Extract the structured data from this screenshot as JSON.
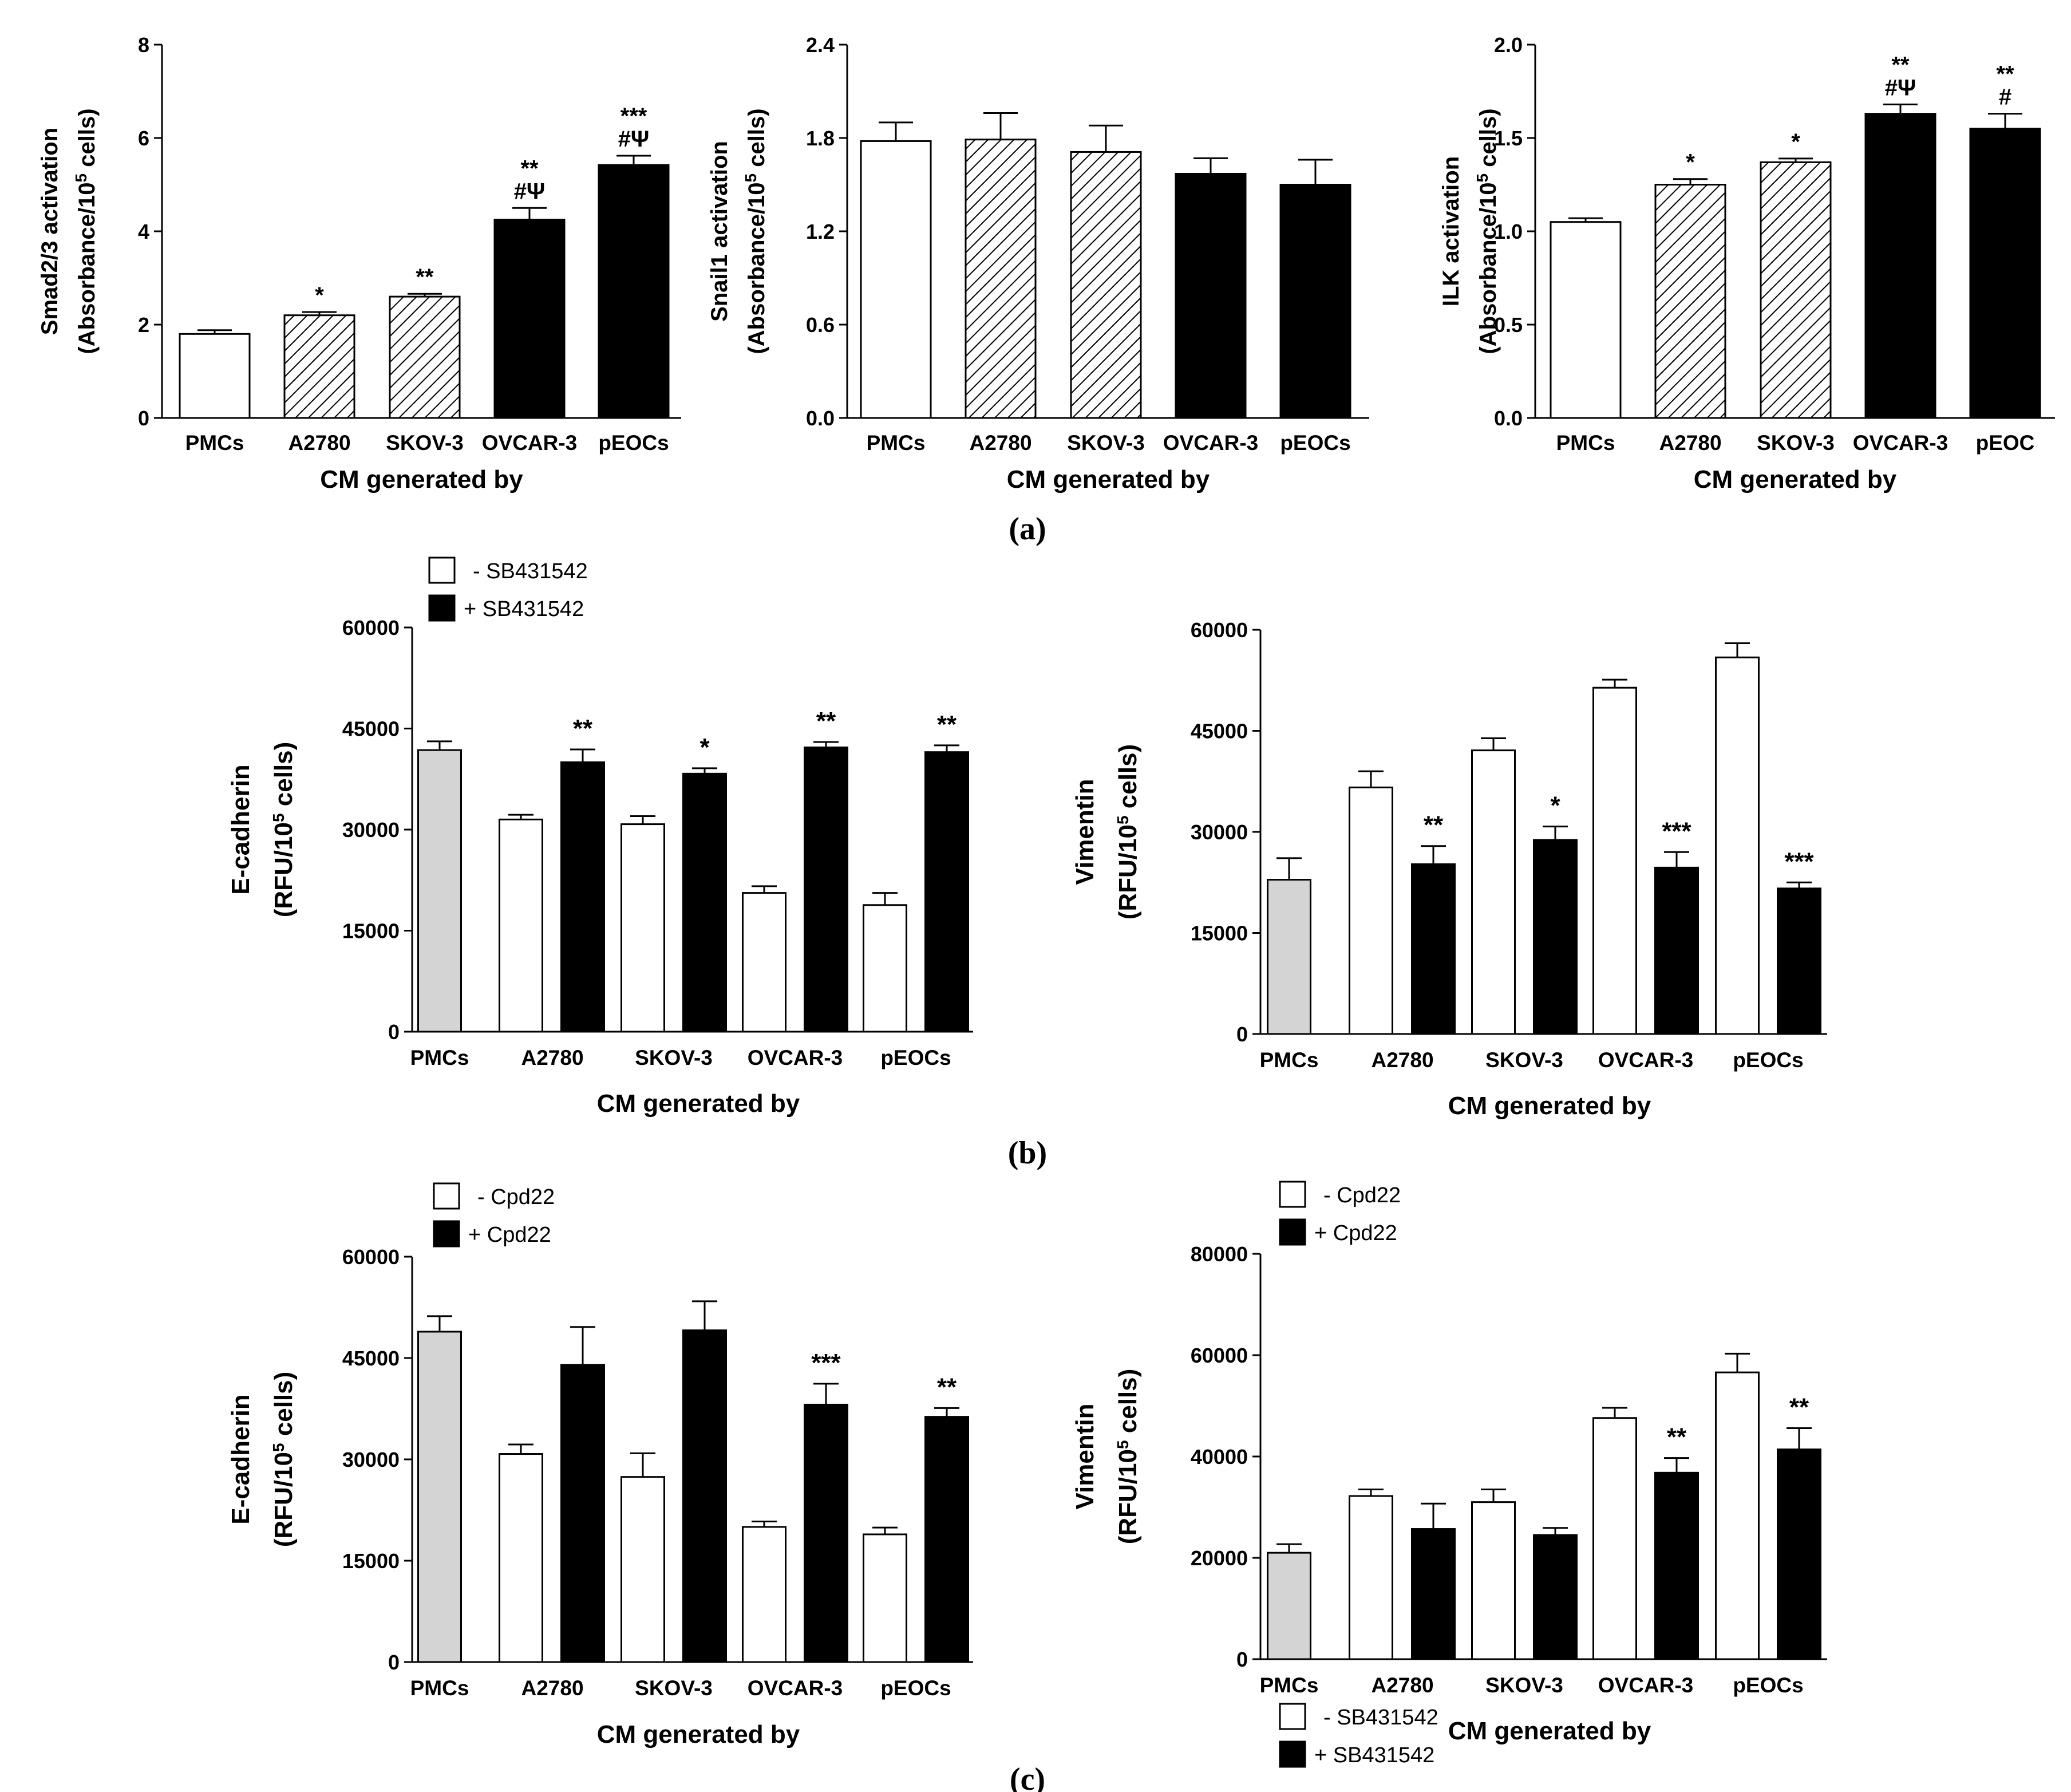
{
  "panel_labels": [
    "(a)",
    "(b)",
    "(c)"
  ],
  "chart_data": [
    {
      "type": "bar",
      "title": "",
      "xlabel": "CM generated by",
      "ylabel": [
        "Smad2/3 activation",
        "(Absorbance/10^5 cells)"
      ],
      "ylim": [
        0,
        8
      ],
      "yticks": [
        "0",
        "2",
        "4",
        "6",
        "8"
      ],
      "categories": [
        "PMCs",
        "A2780",
        "SKOV-3",
        "OVCAR-3",
        "pEOCs"
      ],
      "series": [
        {
          "name": "CM",
          "values": [
            1.8,
            2.2,
            2.6,
            4.25,
            5.42
          ],
          "errors": [
            0.08,
            0.07,
            0.06,
            0.25,
            0.2
          ],
          "fills": [
            "white",
            "hatch",
            "hatch",
            "black",
            "black"
          ]
        }
      ],
      "annotations": [
        [],
        [
          "*"
        ],
        [
          "**"
        ],
        [
          "**",
          "#Ψ"
        ],
        [
          "***",
          "#Ψ"
        ]
      ]
    },
    {
      "type": "bar",
      "title": "",
      "xlabel": "CM generated by",
      "ylabel": [
        "Snail1 activation",
        "(Absorbance/10^5 cells)"
      ],
      "ylim": [
        0,
        2.4
      ],
      "yticks": [
        "0.0",
        "0.6",
        "1.2",
        "1.8",
        "2.4"
      ],
      "categories": [
        "PMCs",
        "A2780",
        "SKOV-3",
        "OVCAR-3",
        "pEOCs"
      ],
      "series": [
        {
          "name": "CM",
          "values": [
            1.78,
            1.79,
            1.71,
            1.57,
            1.5
          ],
          "errors": [
            0.12,
            0.17,
            0.17,
            0.1,
            0.16
          ],
          "fills": [
            "white",
            "hatch",
            "hatch",
            "black",
            "black"
          ]
        }
      ],
      "annotations": [
        [],
        [],
        [],
        [],
        []
      ]
    },
    {
      "type": "bar",
      "title": "",
      "xlabel": "CM generated by",
      "ylabel": [
        "ILK activation",
        "(Absorbance/10^5 cells)"
      ],
      "ylim": [
        0,
        2.0
      ],
      "yticks": [
        "0.0",
        "0.5",
        "1.0",
        "1.5",
        "2.0"
      ],
      "categories": [
        "PMCs",
        "A2780",
        "SKOV-3",
        "OVCAR-3",
        "pEOC"
      ],
      "series": [
        {
          "name": "CM",
          "values": [
            1.05,
            1.25,
            1.37,
            1.63,
            1.55
          ],
          "errors": [
            0.02,
            0.03,
            0.02,
            0.05,
            0.08
          ],
          "fills": [
            "white",
            "hatch",
            "hatch",
            "black",
            "black"
          ]
        }
      ],
      "annotations": [
        [],
        [
          "*"
        ],
        [
          "*"
        ],
        [
          "**",
          "#Ψ"
        ],
        [
          "**",
          "#"
        ]
      ]
    },
    {
      "type": "bar",
      "title": "",
      "xlabel": "CM generated by",
      "ylabel": [
        "E-cadherin",
        "(RFU/10^5 cells)"
      ],
      "ylim": [
        0,
        60000
      ],
      "yticks": [
        "0",
        "15000",
        "30000",
        "45000",
        "60000"
      ],
      "categories": [
        "PMCs",
        "A2780",
        "SKOV-3",
        "OVCAR-3",
        "pEOCs"
      ],
      "legend": [
        "- SB431542",
        "+ SB431542"
      ],
      "control": {
        "value": 41800,
        "error": 1300
      },
      "series": [
        {
          "name": "- SB431542",
          "values": [
            null,
            31500,
            30800,
            20600,
            18800
          ],
          "errors": [
            null,
            700,
            1200,
            1000,
            1800
          ]
        },
        {
          "name": "+ SB431542",
          "values": [
            null,
            40000,
            38300,
            42200,
            41500
          ],
          "errors": [
            null,
            1900,
            800,
            800,
            1000
          ]
        }
      ],
      "annotations": [
        null,
        "**",
        "*",
        "**",
        "**"
      ]
    },
    {
      "type": "bar",
      "title": "",
      "xlabel": "CM generated by",
      "ylabel": [
        "Vimentin",
        "(RFU/10^5 cells)"
      ],
      "ylim": [
        0,
        60000
      ],
      "yticks": [
        "0",
        "15000",
        "30000",
        "45000",
        "60000"
      ],
      "categories": [
        "PMCs",
        "A2780",
        "SKOV-3",
        "OVCAR-3",
        "pEOCs"
      ],
      "legend": [
        "- SB431542",
        "+ SB431542"
      ],
      "control": {
        "value": 22900,
        "error": 3200
      },
      "series": [
        {
          "name": "- SB431542",
          "values": [
            null,
            36600,
            42100,
            51400,
            55900
          ],
          "errors": [
            null,
            2400,
            1800,
            1200,
            2100
          ]
        },
        {
          "name": "+ SB431542",
          "values": [
            null,
            25200,
            28800,
            24700,
            21600
          ],
          "errors": [
            null,
            2700,
            2000,
            2300,
            900
          ]
        }
      ],
      "annotations": [
        null,
        "**",
        "*",
        "***",
        "***"
      ]
    },
    {
      "type": "bar",
      "title": "",
      "xlabel": "CM generated by",
      "ylabel": [
        "E-cadherin",
        "(RFU/10^5 cells)"
      ],
      "ylim": [
        0,
        60000
      ],
      "yticks": [
        "0",
        "15000",
        "30000",
        "45000",
        "60000"
      ],
      "categories": [
        "PMCs",
        "A2780",
        "SKOV-3",
        "OVCAR-3",
        "pEOCs"
      ],
      "legend": [
        "- Cpd22",
        "+ Cpd22"
      ],
      "control": {
        "value": 48900,
        "error": 2300
      },
      "series": [
        {
          "name": "- Cpd22",
          "values": [
            null,
            30800,
            27400,
            20000,
            18900
          ],
          "errors": [
            null,
            1400,
            3500,
            800,
            1000
          ]
        },
        {
          "name": "+ Cpd22",
          "values": [
            null,
            44000,
            49100,
            38100,
            36300
          ],
          "errors": [
            null,
            5600,
            4300,
            3100,
            1300
          ]
        }
      ],
      "annotations": [
        null,
        null,
        null,
        "***",
        "**"
      ]
    },
    {
      "type": "bar",
      "title": "",
      "xlabel": "CM generated by",
      "ylabel": [
        "Vimentin",
        "(RFU/10^5 cells)"
      ],
      "ylim": [
        0,
        80000
      ],
      "yticks": [
        "0",
        "20000",
        "40000",
        "60000",
        "80000"
      ],
      "categories": [
        "PMCs",
        "A2780",
        "SKOV-3",
        "OVCAR-3",
        "pEOCs"
      ],
      "legend": [
        "- Cpd22",
        "+ Cpd22"
      ],
      "control": {
        "value": 21000,
        "error": 1700
      },
      "series": [
        {
          "name": "- Cpd22",
          "values": [
            null,
            32200,
            31000,
            47600,
            56600
          ],
          "errors": [
            null,
            1300,
            2500,
            2000,
            3700
          ]
        },
        {
          "name": "+ Cpd22",
          "values": [
            null,
            25700,
            24500,
            36800,
            41400
          ],
          "errors": [
            null,
            5000,
            1400,
            2900,
            4200
          ]
        }
      ],
      "annotations": [
        null,
        null,
        null,
        "**",
        "**"
      ]
    }
  ]
}
